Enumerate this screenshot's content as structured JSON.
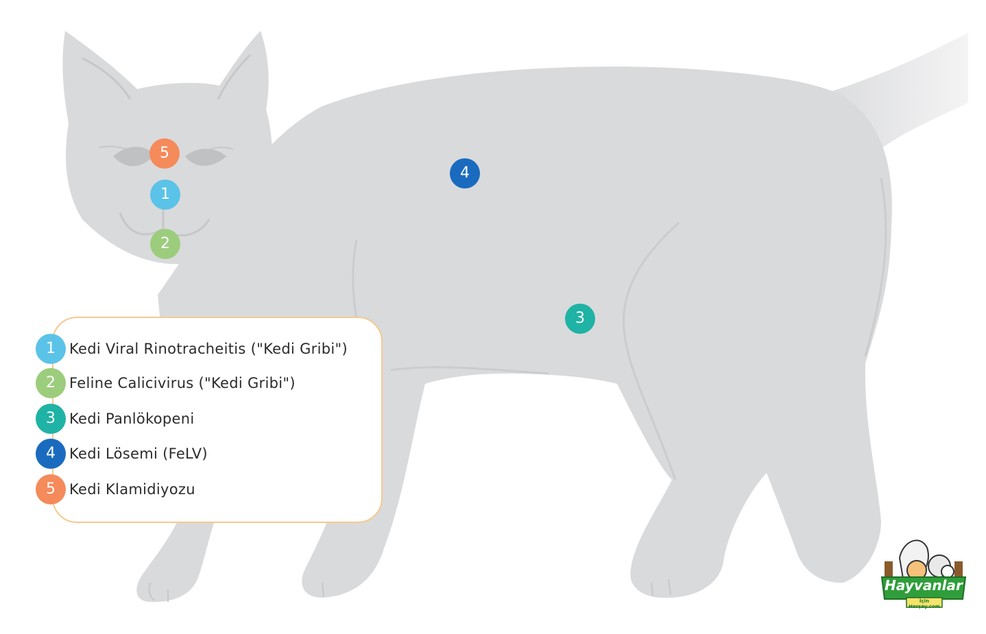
{
  "colors": {
    "cat_fill": "#d9dadc",
    "cat_line": "#c6c7c9",
    "marker_1": "#5bc3e8",
    "marker_2": "#9ccd7c",
    "marker_3": "#1fb3a5",
    "marker_4": "#1a6bbf",
    "marker_5": "#f58a5b",
    "legend_border": "#f5c98e",
    "logo_green": "#2f9e3a"
  },
  "markers": [
    {
      "number": "5",
      "color_key": "marker_5",
      "region": "eyes"
    },
    {
      "number": "1",
      "color_key": "marker_1",
      "region": "nose"
    },
    {
      "number": "2",
      "color_key": "marker_2",
      "region": "mouth"
    },
    {
      "number": "4",
      "color_key": "marker_4",
      "region": "body"
    },
    {
      "number": "3",
      "color_key": "marker_3",
      "region": "abdomen"
    }
  ],
  "legend": {
    "items": [
      {
        "number": "1",
        "label": "Kedi Viral Rinotracheitis (\"Kedi Gribi\")"
      },
      {
        "number": "2",
        "label": "Feline Calicivirus (\"Kedi Gribi\")"
      },
      {
        "number": "3",
        "label": "Kedi Panlökopeni"
      },
      {
        "number": "4",
        "label": "Kedi Lösemi (FeLV)"
      },
      {
        "number": "5",
        "label": "Kedi Klamidiyozu"
      }
    ]
  },
  "logo": {
    "brand": "Hayvanlar",
    "sub": "İçin Herşey.com"
  }
}
